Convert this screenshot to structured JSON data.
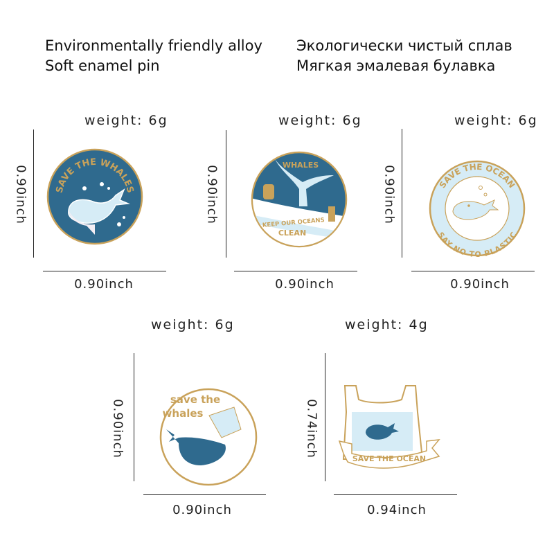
{
  "header": {
    "line1_en": "Environmentally friendly alloy",
    "line2_en": "Soft enamel pin",
    "line1_ru": "Экологически чистый сплав",
    "line2_ru": "Мягкая эмалевая булавка"
  },
  "colors": {
    "navy": "#2f6a8e",
    "light_blue": "#d6ecf6",
    "gold": "#c9a25a",
    "white": "#ffffff"
  },
  "pins": [
    {
      "weight": "weight:  6g",
      "height": "0.90inch",
      "width": "0.90inch",
      "lettering": [
        "SAVE THE WHALES"
      ]
    },
    {
      "weight": "weight:  6g",
      "height": "0.90inch",
      "width": "0.90inch",
      "lettering": [
        "WHALES",
        "KEEP OUR OCEANS",
        "CLEAN"
      ]
    },
    {
      "weight": "weight:  6g",
      "height": "0.90inch",
      "width": "0.90inch",
      "lettering": [
        "SAVE THE OCEAN",
        "SAY NO TO PLASTIC"
      ]
    },
    {
      "weight": "weight:  6g",
      "height": "0.90inch",
      "width": "0.90inch",
      "lettering": [
        "save the",
        "whales"
      ]
    },
    {
      "weight": "weight:  4g",
      "height": "0.74inch",
      "width": "0.94inch",
      "lettering": [
        "SAVE THE OCEAN"
      ]
    }
  ]
}
